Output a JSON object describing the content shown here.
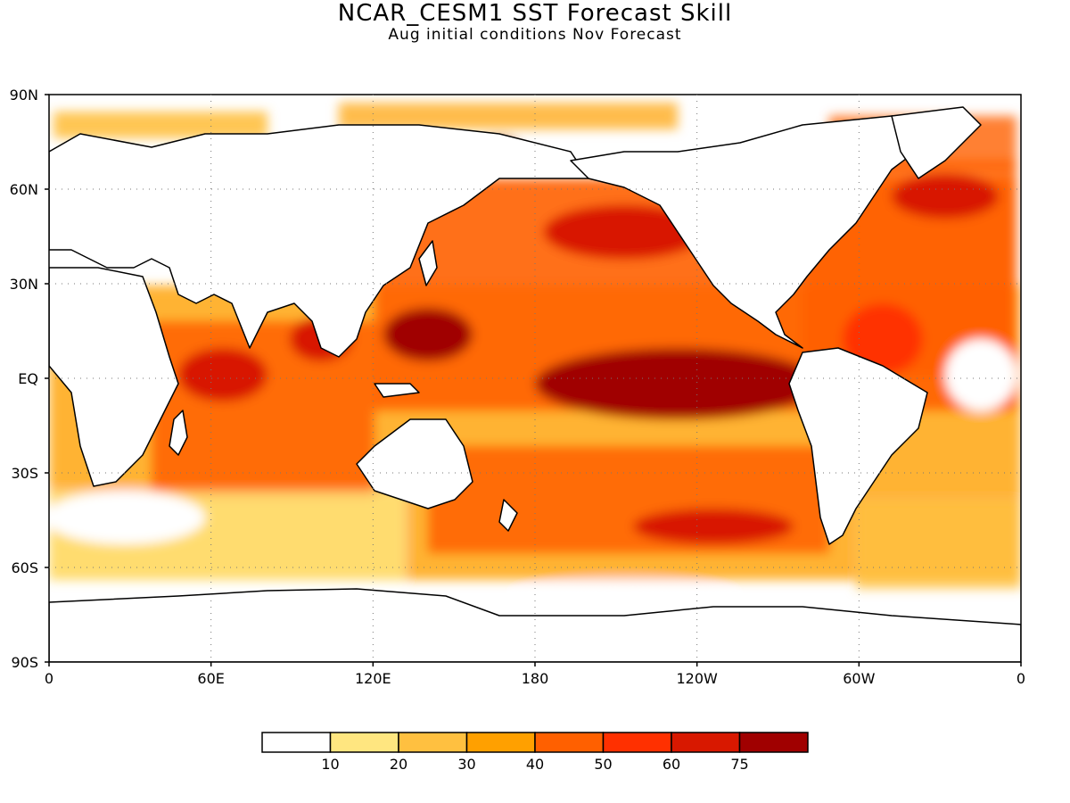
{
  "title": "NCAR_CESM1  SST Forecast Skill",
  "subtitle": "Aug initial conditions   Nov Forecast",
  "map": {
    "projection": "equirectangular",
    "lon_range": [
      0,
      360
    ],
    "lat_range": [
      -90,
      90
    ],
    "gridlines": "dotted",
    "lat_labels": [
      "90N",
      "60N",
      "30N",
      "EQ",
      "30S",
      "60S",
      "90S"
    ],
    "lon_labels": [
      "0",
      "60E",
      "120E",
      "180",
      "120W",
      "60W",
      "0"
    ]
  },
  "colorbar": {
    "tick_labels": [
      "10",
      "20",
      "30",
      "40",
      "50",
      "60",
      "75"
    ],
    "colors": [
      "#ffffff",
      "#ffe680",
      "#ffc040",
      "#ffa000",
      "#ff6000",
      "#ff3000",
      "#d81800",
      "#a00000"
    ]
  }
}
